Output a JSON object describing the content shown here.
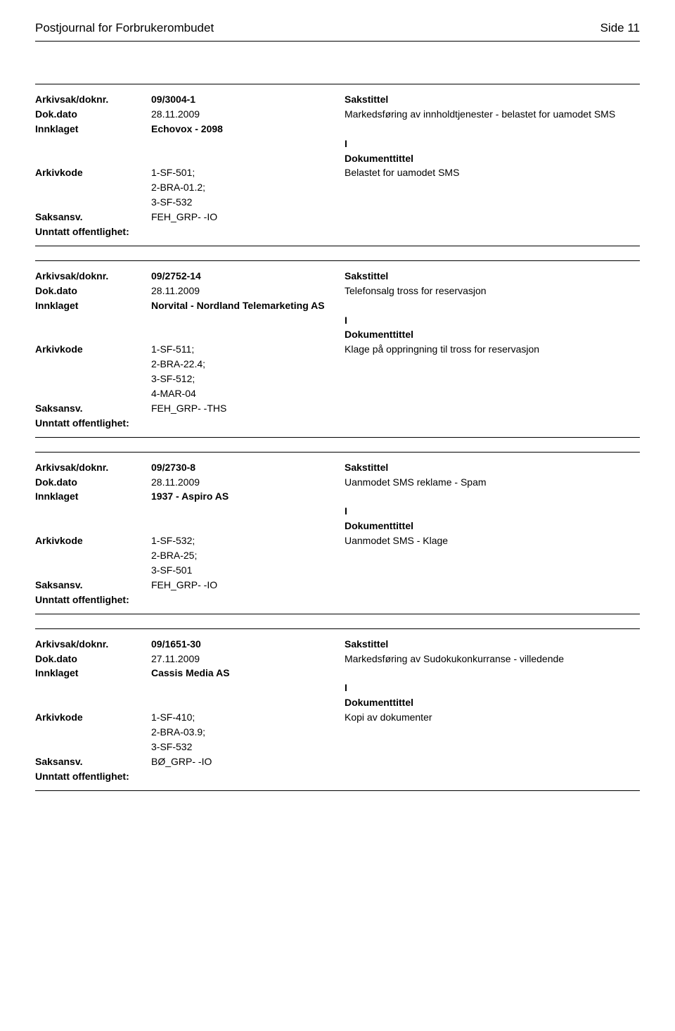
{
  "header": {
    "title": "Postjournal for Forbrukerombudet",
    "page_label": "Side 11"
  },
  "labels": {
    "arkivsak": "Arkivsak/doknr.",
    "dokdato": "Dok.dato",
    "innklaget": "Innklaget",
    "arkivkode": "Arkivkode",
    "saksansv": "Saksansv.",
    "unntatt": "Unntatt offentlighet:",
    "sakstittel": "Sakstittel",
    "dokumenttittel": "Dokumenttittel"
  },
  "records": [
    {
      "arkivsak": "09/3004-1",
      "dokdato": "28.11.2009",
      "sakstittel": "Markedsføring av innholdtjenester - belastet for uamodet SMS",
      "innklaget": "Echovox - 2098",
      "io_type": "I",
      "arkivkode": "1-SF-501; 2-BRA-01.2; 3-SF-532",
      "dokumenttittel": "Belastet for uamodet SMS",
      "saksansv": "FEH_GRP- -IO",
      "unntatt": ""
    },
    {
      "arkivsak": "09/2752-14",
      "dokdato": "28.11.2009",
      "sakstittel": "Telefonsalg tross for reservasjon",
      "innklaget": "Norvital - Nordland Telemarketing AS",
      "io_type": "I",
      "arkivkode": "1-SF-511; 2-BRA-22.4; 3-SF-512; 4-MAR-04",
      "dokumenttittel": "Klage på oppringning til tross for reservasjon",
      "saksansv": "FEH_GRP- -THS",
      "unntatt": ""
    },
    {
      "arkivsak": "09/2730-8",
      "dokdato": "28.11.2009",
      "sakstittel": "Uanmodet SMS reklame - Spam",
      "innklaget": "1937 - Aspiro AS",
      "io_type": "I",
      "arkivkode": "1-SF-532; 2-BRA-25; 3-SF-501",
      "dokumenttittel": "Uanmodet SMS - Klage",
      "saksansv": "FEH_GRP- -IO",
      "unntatt": ""
    },
    {
      "arkivsak": "09/1651-30",
      "dokdato": "27.11.2009",
      "sakstittel": "Markedsføring av Sudokukonkurranse - villedende",
      "innklaget": "Cassis Media AS",
      "io_type": "I",
      "arkivkode": "1-SF-410; 2-BRA-03.9; 3-SF-532",
      "dokumenttittel": "Kopi av dokumenter",
      "saksansv": "BØ_GRP- -IO",
      "unntatt": ""
    }
  ]
}
